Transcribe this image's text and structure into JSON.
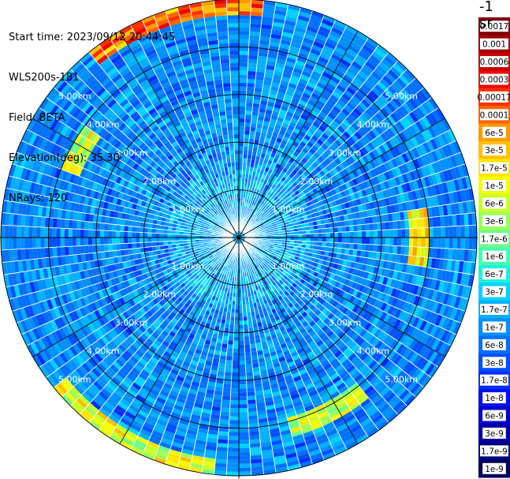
{
  "info": {
    "start_time": "Start time: 2023/09/12 20:44:45",
    "instrument": "WLS200s-181",
    "field": "Field: BETA",
    "elevation": "Elevation(deg): 35.30",
    "nrays": "NRays: 120"
  },
  "colorbar": {
    "unit": "-1 sr",
    "labels": [
      "0.0017",
      "0.001",
      "0.0006",
      "0.0003",
      "0.00017",
      "0.0001",
      "6e-5",
      "3e-5",
      "1.7e-5",
      "1e-5",
      "6e-6",
      "3e-6",
      "1.7e-6",
      "1e-6",
      "6e-7",
      "3e-7",
      "1.7e-7",
      "1e-7",
      "6e-8",
      "3e-8",
      "1.7e-8",
      "1e-8",
      "6e-9",
      "3e-9",
      "1.7e-9",
      "1e-9"
    ],
    "colors": [
      "#7f0000",
      "#a00000",
      "#c80000",
      "#ee0000",
      "#ff3000",
      "#ff6400",
      "#ff9a00",
      "#ffc000",
      "#ffe600",
      "#f2ff00",
      "#c8ff2a",
      "#9cff5a",
      "#70ff86",
      "#46ffb2",
      "#1ef0dc",
      "#00d2ff",
      "#00b0ff",
      "#0090ff",
      "#0070ff",
      "#0050ff",
      "#0030ff",
      "#0010ee",
      "#0000c8",
      "#0000a0",
      "#000080",
      "#00005a"
    ],
    "highlighted": [
      "0.0017",
      "0.001",
      "0.0006",
      "0.0003"
    ]
  },
  "chart_data": {
    "type": "heatmap",
    "subtype": "polar-ppi",
    "field": "BETA",
    "nrays": 120,
    "elevation_deg": 35.3,
    "range_rings_km": [
      1,
      2,
      3,
      4,
      5
    ],
    "ring_labels": [
      "1.00km",
      "2.00km",
      "3.00km",
      "4.00km",
      "5.00km"
    ],
    "spoke_count": 12,
    "max_range_km": 5.0,
    "color_scale": "log",
    "value_range": [
      1e-09,
      0.0017
    ],
    "dominant_value": 1e-07,
    "features": [
      {
        "azimuth_deg": [
          320,
          5
        ],
        "range_km": [
          4.7,
          5.0
        ],
        "peak_value": 0.0003
      },
      {
        "azimuth_deg": [
          185,
          230
        ],
        "range_km": [
          4.7,
          5.0
        ],
        "peak_value": 3e-05
      },
      {
        "azimuth_deg": [
          140,
          165
        ],
        "range_km": [
          3.9,
          4.3
        ],
        "peak_value": 3e-05
      },
      {
        "azimuth_deg": [
          80,
          100
        ],
        "range_km": [
          3.6,
          4.0
        ],
        "peak_value": 6e-05
      },
      {
        "azimuth_deg": [
          290,
          305
        ],
        "range_km": [
          3.6,
          4.0
        ],
        "peak_value": 3e-05
      }
    ]
  }
}
